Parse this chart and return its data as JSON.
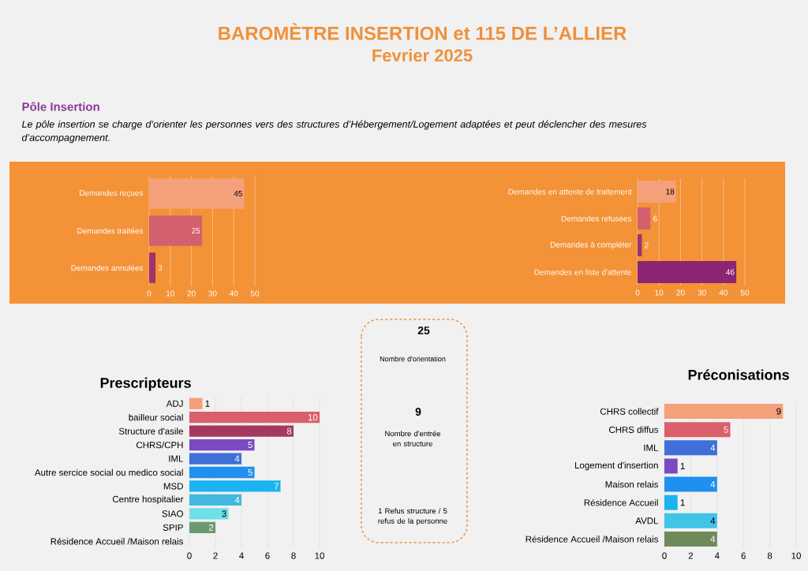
{
  "chart_data": [
    {
      "type": "other",
      "title": "BAROMÈTRE INSERTION et 115 DE L’ALLIER",
      "subtitle": "Fevrier 2025",
      "annotations": [
        "Pôle Insertion",
        "Le pôle insertion se charge d’orienter les personnes vers des structures d’Hébergement/Logement adaptées et peut déclencher des mesures d’accompagnement."
      ]
    },
    {
      "type": "bar",
      "orientation": "horizontal",
      "categories": [
        "Demandes reçues",
        "Demandes traitées",
        "Demandes annulées"
      ],
      "values": [
        45,
        25,
        3
      ],
      "colors": [
        "#f4a07a",
        "#d4606e",
        "#a0336a"
      ],
      "xlim": [
        0,
        50
      ],
      "xticks": [
        0,
        10,
        20,
        30,
        40,
        50
      ],
      "grid": "x",
      "data_labels": true
    },
    {
      "type": "bar",
      "orientation": "horizontal",
      "categories": [
        "Demandes en attente de traitement",
        "Demandes refusées",
        "Demandes à compléter",
        "Demandes en liste d'attente"
      ],
      "values": [
        18,
        6,
        2,
        46
      ],
      "colors": [
        "#f4a07a",
        "#d4606e",
        "#a0336a",
        "#8b2472"
      ],
      "xlim": [
        0,
        50
      ],
      "xticks": [
        0,
        10,
        20,
        30,
        40,
        50
      ],
      "grid": "x",
      "data_labels": true
    },
    {
      "type": "bar",
      "orientation": "horizontal",
      "title": "Prescripteurs",
      "categories": [
        "ADJ",
        "bailleur social",
        "Structure d'asile",
        "CHRS/CPH",
        "IML",
        "Autre sercice social ou medico social",
        "MSD",
        "Centre hospitalier",
        "SIAO",
        "SPIP",
        "Résidence Accueil /Maison relais"
      ],
      "values": [
        1,
        10,
        8,
        5,
        4,
        5,
        7,
        4,
        3,
        2,
        null
      ],
      "colors": [
        "#f4a07a",
        "#d9606a",
        "#a33a5e",
        "#7b49c1",
        "#3f6fd8",
        "#1e90f0",
        "#1ab4f0",
        "#40b8e0",
        "#6ee0e8",
        "#6a9a70",
        "#6a9a70"
      ],
      "xlim": [
        0,
        10
      ],
      "xticks": [
        0,
        2,
        4,
        6,
        8,
        10
      ],
      "grid": "x",
      "data_labels": true
    },
    {
      "type": "other",
      "annotations": [
        "25",
        "Nombre d'orientation",
        "9",
        "Nombre d'entrée en structure",
        "1 Refus structure / 5 refus de la personne"
      ]
    },
    {
      "type": "bar",
      "orientation": "horizontal",
      "title": "Préconisations",
      "categories": [
        "CHRS collectif",
        "CHRS diffus",
        "IML",
        "Logement d'insertion",
        "Maison relais",
        "Résidence Accueil",
        "AVDL",
        "Résidence Accueil /Maison relais"
      ],
      "values": [
        9,
        5,
        4,
        1,
        4,
        1,
        4,
        4
      ],
      "colors": [
        "#f4a07a",
        "#d9606a",
        "#3f6fd8",
        "#7b49c1",
        "#1e90f0",
        "#1ab4f0",
        "#40c4e8",
        "#6e8a5a"
      ],
      "xlim": [
        0,
        10
      ],
      "xticks": [
        0,
        2,
        4,
        6,
        8,
        10
      ],
      "grid": "x",
      "data_labels": true
    }
  ]
}
